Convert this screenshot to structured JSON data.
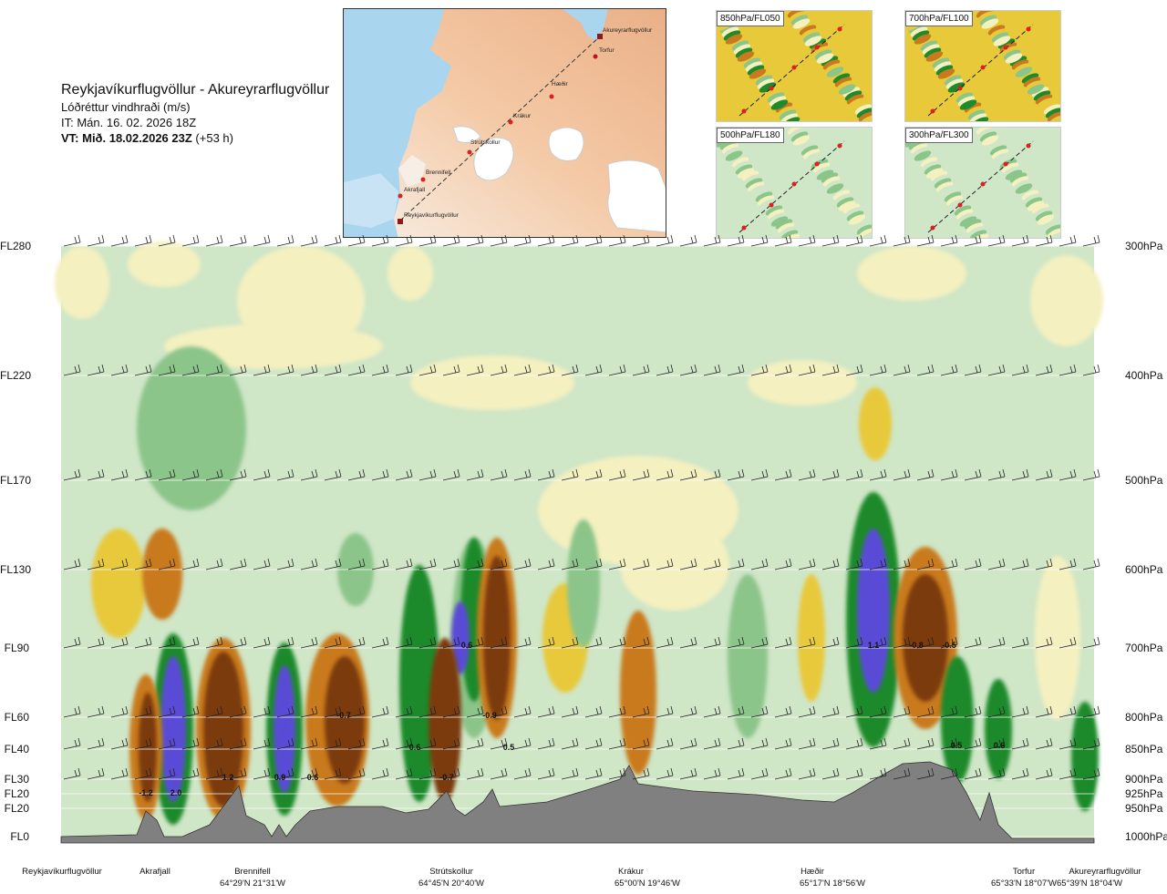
{
  "header": {
    "title": "Reykjavíkurflugvöllur - Akureyrarflugvöllur",
    "subtitle": "Lóðréttur vindhraði (m/s)",
    "run": "IT: Mán. 16. 02. 2026 18Z",
    "valid_bold": "VT: Mið. 18.02.2026 23Z",
    "valid_lead": "(+53 h)"
  },
  "route_map": {
    "points": [
      {
        "label": "Akureyrarflugvöllur"
      },
      {
        "label": "Torfur"
      },
      {
        "label": "Hæðir"
      },
      {
        "label": "Krákur"
      },
      {
        "label": "Strútskollur"
      },
      {
        "label": "Brennifell"
      },
      {
        "label": "Akrafjall"
      },
      {
        "label": "Reykjavíkurflugvöllur"
      }
    ]
  },
  "mini_maps": [
    {
      "label": "850hPa/FL050"
    },
    {
      "label": "700hPa/FL100"
    },
    {
      "label": "500hPa/FL180"
    },
    {
      "label": "300hPa/FL300"
    }
  ],
  "chart_data": {
    "type": "heatmap",
    "title": "Lóðréttur vindhraði (m/s)",
    "levels": [
      {
        "fl": "FL280",
        "hpa": "300hPa"
      },
      {
        "fl": "FL220",
        "hpa": "400hPa"
      },
      {
        "fl": "FL170",
        "hpa": "500hPa"
      },
      {
        "fl": "FL130",
        "hpa": "600hPa"
      },
      {
        "fl": "FL90",
        "hpa": "700hPa"
      },
      {
        "fl": "FL60",
        "hpa": "800hPa"
      },
      {
        "fl": "FL40",
        "hpa": "850hPa"
      },
      {
        "fl": "FL30",
        "hpa": "900hPa"
      },
      {
        "fl": "FL20",
        "hpa": "925hPa"
      },
      {
        "fl": "FL20",
        "hpa": "950hPa"
      },
      {
        "fl": "FL0",
        "hpa": "1000hPa"
      }
    ],
    "waypoints": [
      {
        "name": "Reykjavíkurflugvöllur",
        "coord": ""
      },
      {
        "name": "Akrafjall",
        "coord": ""
      },
      {
        "name": "Brennifell",
        "coord": "64°29'N 21°31'W"
      },
      {
        "name": "Strútskollur",
        "coord": "64°45'N 20°40'W"
      },
      {
        "name": "Krákur",
        "coord": "65°00'N 19°46'W"
      },
      {
        "name": "Hæðir",
        "coord": "65°17'N 18°56'W"
      },
      {
        "name": "Torfur",
        "coord": "65°33'N 18°07'W"
      },
      {
        "name": "Akureyrarflugvöllur",
        "coord": "65°39'N 18°04'W"
      }
    ],
    "value_labels": [
      "-1.2",
      "2.0",
      "1.2",
      "0.9",
      "0.6",
      "-0.7",
      "0.6",
      "-0.7",
      "0.6",
      "-0.9",
      "0.5",
      "1.1",
      "-0.8",
      "-0.5",
      "0.5",
      "0.6"
    ],
    "colors": {
      "strong_down": "#7b3a10",
      "down": "#c97a1e",
      "weak_down": "#e8c93a",
      "neutral": "#f4f0c0",
      "weak_up": "#cfe6c7",
      "up": "#8cc58a",
      "strong_up": "#1e8a2a",
      "very_strong_up": "#5a4bd6",
      "terrain": "#808080"
    }
  }
}
